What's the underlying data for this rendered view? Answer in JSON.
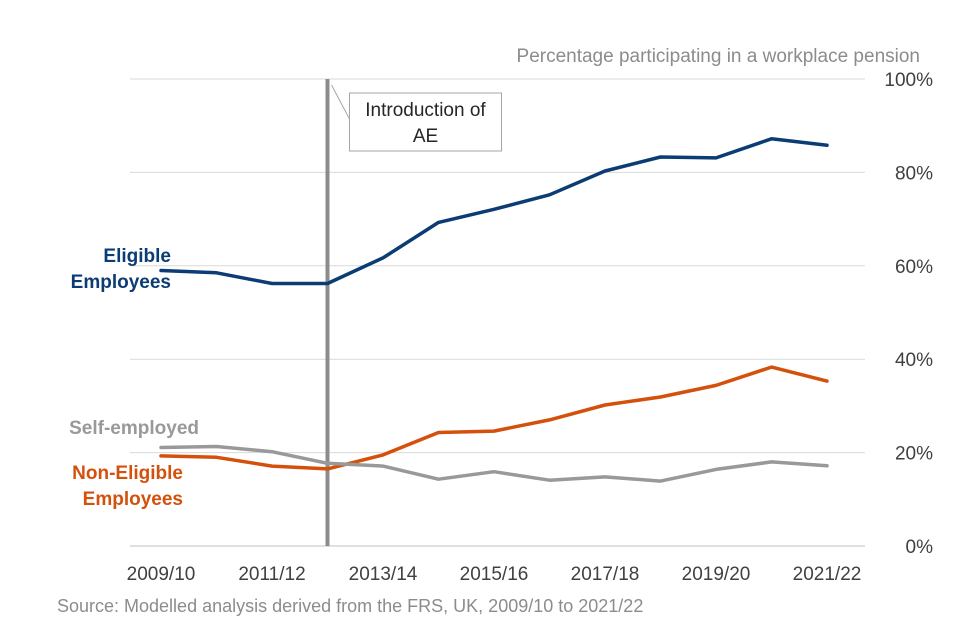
{
  "chart_data": {
    "type": "line",
    "title": "",
    "ylabel": "Percentage participating in a workplace pension",
    "xlabel": "",
    "source": "Source: Modelled analysis derived from the FRS, UK, 2009/10 to 2021/22",
    "x": [
      "2009/10",
      "2010/11",
      "2011/12",
      "2012/13",
      "2013/14",
      "2014/15",
      "2015/16",
      "2016/17",
      "2017/18",
      "2018/19",
      "2019/20",
      "2020/21",
      "2021/22"
    ],
    "x_tick_labels": [
      "2009/10",
      "2011/12",
      "2013/14",
      "2015/16",
      "2017/18",
      "2019/20",
      "2021/22"
    ],
    "ylim": [
      0,
      100
    ],
    "y_ticks": [
      0,
      20,
      40,
      60,
      80,
      100
    ],
    "y_tick_format": "%",
    "grid": true,
    "series": [
      {
        "name": "Eligible Employees",
        "label_lines": [
          "Eligible",
          "Employees"
        ],
        "color": "#0b3c74",
        "values": [
          59,
          58.5,
          56.2,
          56.2,
          61.7,
          69.3,
          72.1,
          75.2,
          80.3,
          83.3,
          83.1,
          87.2,
          85.8
        ]
      },
      {
        "name": "Non-Eligible Employees",
        "label_lines": [
          "Non-Eligible",
          "Employees"
        ],
        "color": "#d4510c",
        "values": [
          19.3,
          19.0,
          17.1,
          16.5,
          19.5,
          24.3,
          24.6,
          27.0,
          30.2,
          31.9,
          34.4,
          38.3,
          35.3
        ]
      },
      {
        "name": "Self-employed",
        "label_lines": [
          "Self-employed"
        ],
        "color": "#999999",
        "values": [
          21.1,
          21.3,
          20.2,
          17.7,
          17.1,
          14.3,
          15.9,
          14.1,
          14.8,
          13.9,
          16.4,
          18.0,
          17.2
        ]
      }
    ],
    "annotations": [
      {
        "text_lines": [
          "Introduction of",
          "AE"
        ],
        "x_value": "2012/13"
      }
    ]
  }
}
